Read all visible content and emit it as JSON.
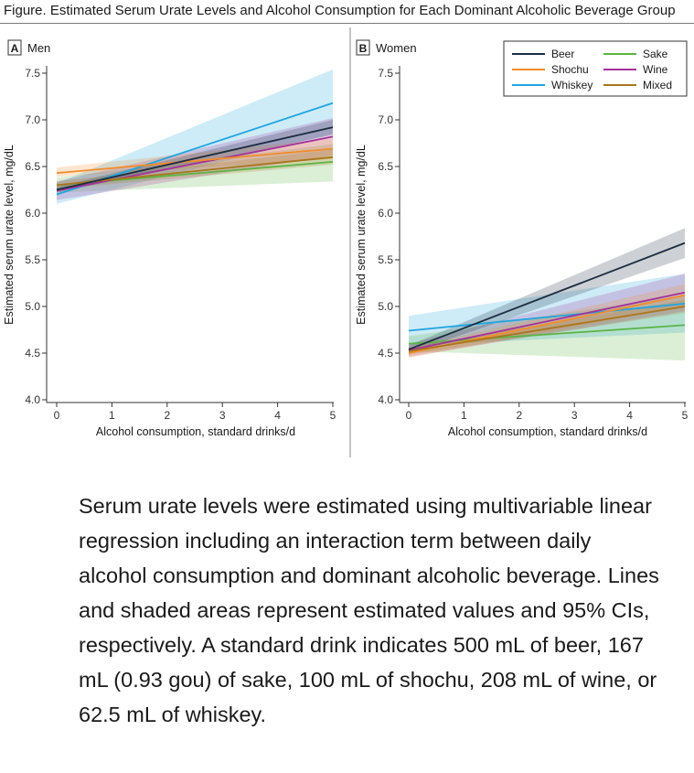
{
  "figure_title": "Figure. Estimated Serum Urate Levels and Alcohol Consumption for Each Dominant Alcoholic Beverage Group",
  "caption": "Serum urate levels were estimated using multivariable linear regression including an interaction term between daily alcohol consumption and dominant alcoholic beverage. Lines and shaded areas represent estimated values and 95% CIs, respectively. A standard drink indicates 500 mL of beer, 167 mL (0.93 gou) of sake, 100 mL of shochu, 208 mL of wine, or 62.5 mL of whiskey.",
  "legend": [
    {
      "name": "Beer",
      "color": "#1c2d3e"
    },
    {
      "name": "Sake",
      "color": "#5ab544"
    },
    {
      "name": "Shochu",
      "color": "#f28c28"
    },
    {
      "name": "Wine",
      "color": "#a3319a"
    },
    {
      "name": "Whiskey",
      "color": "#1fa6e0"
    },
    {
      "name": "Mixed",
      "color": "#a9761c"
    }
  ],
  "chart_data": [
    {
      "type": "line",
      "panel_letter": "A",
      "panel_label": "Men",
      "xlabel": "Alcohol consumption, standard drinks/d",
      "ylabel": "Estimated serum urate level, mg/dL",
      "xlim": [
        0,
        5
      ],
      "ylim": [
        4.0,
        7.5
      ],
      "x_ticks": [
        "0",
        "1",
        "2",
        "3",
        "4",
        "5"
      ],
      "y_ticks": [
        "4.0",
        "4.5",
        "5.0",
        "5.5",
        "6.0",
        "6.5",
        "7.0",
        "7.5"
      ],
      "grid": false,
      "series": [
        {
          "name": "Whiskey",
          "color": "#1fa6e0",
          "x": [
            0,
            5
          ],
          "y": [
            6.2,
            7.18
          ],
          "ci_lower": [
            6.1,
            6.85
          ],
          "ci_upper": [
            6.32,
            7.54
          ]
        },
        {
          "name": "Sake",
          "color": "#5ab544",
          "x": [
            0,
            5
          ],
          "y": [
            6.3,
            6.55
          ],
          "ci_lower": [
            6.22,
            6.34
          ],
          "ci_upper": [
            6.38,
            6.74
          ]
        },
        {
          "name": "Wine",
          "color": "#a3319a",
          "x": [
            0,
            5
          ],
          "y": [
            6.24,
            6.82
          ],
          "ci_lower": [
            6.14,
            6.62
          ],
          "ci_upper": [
            6.34,
            7.02
          ]
        },
        {
          "name": "Shochu",
          "color": "#f28c28",
          "x": [
            0,
            5
          ],
          "y": [
            6.43,
            6.69
          ],
          "ci_lower": [
            6.39,
            6.58
          ],
          "ci_upper": [
            6.49,
            6.8
          ]
        },
        {
          "name": "Mixed",
          "color": "#a9761c",
          "x": [
            0,
            5
          ],
          "y": [
            6.3,
            6.6
          ],
          "ci_lower": [
            6.26,
            6.52
          ],
          "ci_upper": [
            6.34,
            6.68
          ]
        },
        {
          "name": "Beer",
          "color": "#1c2d3e",
          "x": [
            0,
            5
          ],
          "y": [
            6.25,
            6.92
          ],
          "ci_lower": [
            6.22,
            6.84
          ],
          "ci_upper": [
            6.28,
            7.0
          ]
        }
      ]
    },
    {
      "type": "line",
      "panel_letter": "B",
      "panel_label": "Women",
      "xlabel": "Alcohol consumption, standard drinks/d",
      "ylabel": "Estimated serum urate level, mg/dL",
      "xlim": [
        0,
        5
      ],
      "ylim": [
        4.0,
        7.5
      ],
      "x_ticks": [
        "0",
        "1",
        "2",
        "3",
        "4",
        "5"
      ],
      "y_ticks": [
        "4.0",
        "4.5",
        "5.0",
        "5.5",
        "6.0",
        "6.5",
        "7.0",
        "7.5"
      ],
      "grid": false,
      "legend_position": "top-right",
      "series": [
        {
          "name": "Whiskey",
          "color": "#1fa6e0",
          "x": [
            0,
            5
          ],
          "y": [
            4.74,
            5.03
          ],
          "ci_lower": [
            4.58,
            4.72
          ],
          "ci_upper": [
            4.9,
            5.35
          ]
        },
        {
          "name": "Sake",
          "color": "#5ab544",
          "x": [
            0,
            5
          ],
          "y": [
            4.6,
            4.8
          ],
          "ci_lower": [
            4.52,
            4.42
          ],
          "ci_upper": [
            4.68,
            5.12
          ]
        },
        {
          "name": "Wine",
          "color": "#a3319a",
          "x": [
            0,
            5
          ],
          "y": [
            4.53,
            5.15
          ],
          "ci_lower": [
            4.46,
            4.95
          ],
          "ci_upper": [
            4.6,
            5.35
          ]
        },
        {
          "name": "Shochu",
          "color": "#f28c28",
          "x": [
            0,
            5
          ],
          "y": [
            4.5,
            5.12
          ],
          "ci_lower": [
            4.45,
            5.0
          ],
          "ci_upper": [
            4.55,
            5.24
          ]
        },
        {
          "name": "Mixed",
          "color": "#a9761c",
          "x": [
            0,
            5
          ],
          "y": [
            4.52,
            5.0
          ],
          "ci_lower": [
            4.48,
            4.93
          ],
          "ci_upper": [
            4.56,
            5.07
          ]
        },
        {
          "name": "Beer",
          "color": "#1c2d3e",
          "x": [
            0,
            5
          ],
          "y": [
            4.54,
            5.68
          ],
          "ci_lower": [
            4.5,
            5.52
          ],
          "ci_upper": [
            4.58,
            5.84
          ]
        }
      ]
    }
  ]
}
